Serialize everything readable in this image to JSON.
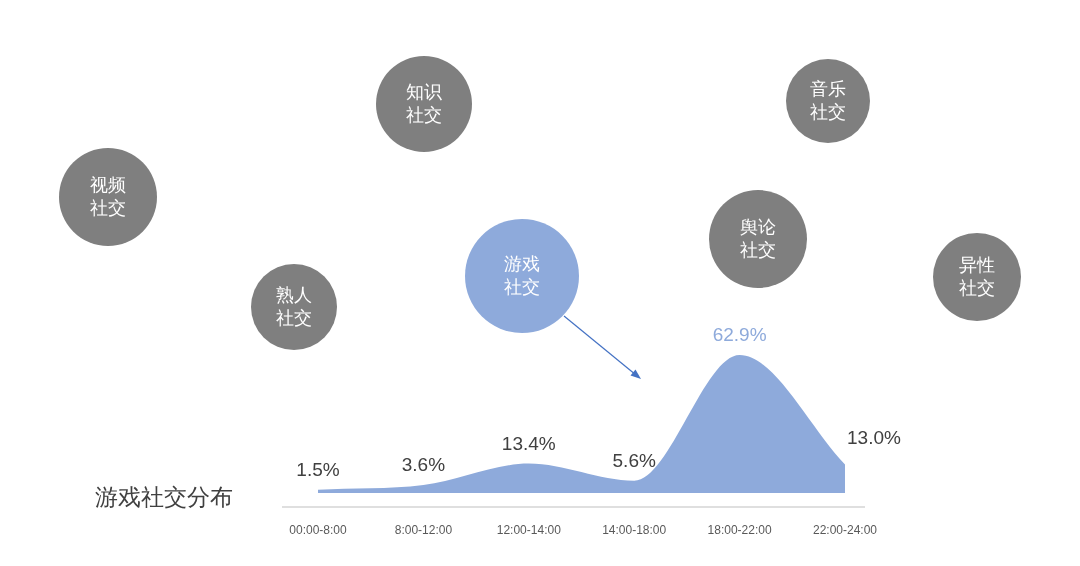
{
  "chart_data": {
    "type": "area",
    "title": "游戏社交分布",
    "categories": [
      "00:00-8:00",
      "8:00-12:00",
      "12:00-14:00",
      "14:00-18:00",
      "18:00-22:00",
      "22:00-24:00"
    ],
    "values": [
      1.5,
      3.6,
      13.4,
      5.6,
      62.9,
      13.0
    ],
    "value_labels": [
      "1.5%",
      "3.6%",
      "13.4%",
      "5.6%",
      "62.9%",
      "13.0%"
    ],
    "color": "#8eaadb",
    "tick_labels": "x",
    "annotations": [
      "知识社交",
      "音乐社交",
      "视频社交",
      "舆论社交",
      "游戏社交",
      "异性社交",
      "熟人社交"
    ]
  }
}
